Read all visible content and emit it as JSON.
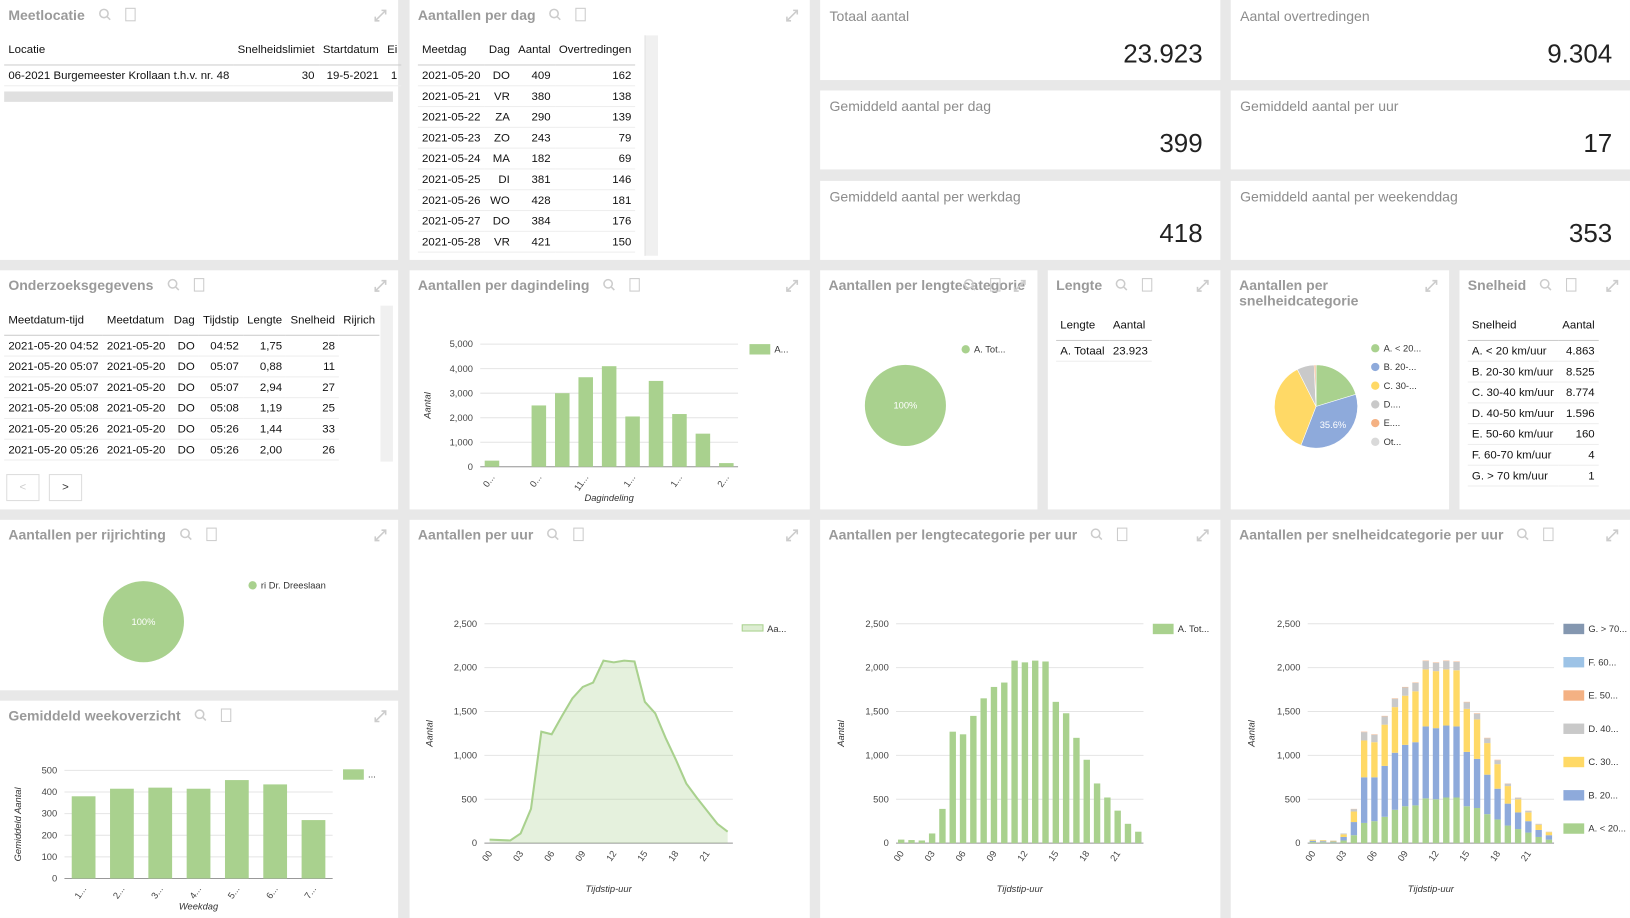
{
  "tables": [
    {
      "title": "Meetlocatie",
      "columns": [
        "Locatie",
        "Snelheidslimiet",
        "Startdatum",
        "Ei"
      ],
      "rows": [
        [
          "06-2021 Burgemeester Krollaan t.h.v. nr. 48",
          30,
          "19-5-2021",
          "1"
        ]
      ]
    },
    {
      "title": "Aantallen per dag",
      "columns": [
        "Meetdag",
        "Dag",
        "Aantal",
        "Overtredingen"
      ],
      "rows": [
        [
          "2021-05-20",
          "DO",
          409,
          162
        ],
        [
          "2021-05-21",
          "VR",
          380,
          138
        ],
        [
          "2021-05-22",
          "ZA",
          290,
          139
        ],
        [
          "2021-05-23",
          "ZO",
          243,
          79
        ],
        [
          "2021-05-24",
          "MA",
          182,
          69
        ],
        [
          "2021-05-25",
          "DI",
          381,
          146
        ],
        [
          "2021-05-26",
          "WO",
          428,
          181
        ],
        [
          "2021-05-27",
          "DO",
          384,
          176
        ],
        [
          "2021-05-28",
          "VR",
          421,
          150
        ]
      ]
    },
    {
      "title": "Onderzoeksgegevens",
      "columns": [
        "Meetdatum-tijd",
        "Meetdatum",
        "Dag",
        "Tijdstip",
        "Lengte",
        "Snelheid",
        "Rijrich"
      ],
      "rows": [
        [
          "2021-05-20 04:52",
          "2021-05-20",
          "DO",
          "04:52",
          "1,75",
          28
        ],
        [
          "2021-05-20 05:07",
          "2021-05-20",
          "DO",
          "05:07",
          "0,88",
          11
        ],
        [
          "2021-05-20 05:07",
          "2021-05-20",
          "DO",
          "05:07",
          "2,94",
          27
        ],
        [
          "2021-05-20 05:08",
          "2021-05-20",
          "DO",
          "05:08",
          "1,19",
          25
        ],
        [
          "2021-05-20 05:26",
          "2021-05-20",
          "DO",
          "05:26",
          "1,44",
          33
        ],
        [
          "2021-05-20 05:26",
          "2021-05-20",
          "DO",
          "05:26",
          "2,00",
          26
        ]
      ]
    },
    {
      "title": "Lengte",
      "columns": [
        "Lengte",
        "Aantal"
      ],
      "rows": [
        [
          "A. Totaal",
          "23.923"
        ]
      ]
    },
    {
      "title": "Snelheid",
      "columns": [
        "Snelheid",
        "Aantal"
      ],
      "rows": [
        [
          "A. < 20 km/uur",
          "4.863"
        ],
        [
          "B. 20-30 km/uur",
          "8.525"
        ],
        [
          "C. 30-40 km/uur",
          "8.774"
        ],
        [
          "D. 40-50 km/uur",
          "1.596"
        ],
        [
          "E. 50-60 km/uur",
          160
        ],
        [
          "F. 60-70 km/uur",
          4
        ],
        [
          "G. > 70 km/uur",
          1
        ]
      ]
    }
  ],
  "kpis": [
    {
      "label": "Totaal aantal",
      "value": "23.923"
    },
    {
      "label": "Aantal overtredingen",
      "value": "9.304"
    },
    {
      "label": "Gemiddeld aantal per dag",
      "value": 399
    },
    {
      "label": "Gemiddeld aantal per uur",
      "value": 17
    },
    {
      "label": "Gemiddeld aantal per werkdag",
      "value": 418
    },
    {
      "label": "Gemiddeld aantal per weekenddag",
      "value": 353
    }
  ],
  "pager": {
    "prev": "<",
    "next": ">"
  },
  "chart_data": [
    {
      "type": "bar",
      "title": "Aantallen per dagindeling",
      "xlabel": "Dagindeling",
      "ylabel": "Aantal",
      "categories": [
        "0...",
        null,
        "0...",
        null,
        "11...",
        null,
        "1...",
        null,
        "1...",
        null,
        "2..."
      ],
      "series": [
        {
          "name": "A...",
          "color": "#a9d18e",
          "values": [
            250,
            0,
            2500,
            3000,
            3650,
            4100,
            2050,
            3500,
            2150,
            1350,
            150
          ]
        }
      ],
      "ylim": [
        0,
        5000
      ],
      "yticks": [
        0,
        {
          "value": 1000,
          "label": "1,000"
        },
        {
          "value": 2000,
          "label": "2,000"
        },
        {
          "value": 3000,
          "label": "3,000"
        },
        {
          "value": 4000,
          "label": "4,000"
        },
        {
          "value": 5000,
          "label": "5,000"
        }
      ],
      "grid": true
    },
    {
      "type": "pie",
      "title": "Aantallen per lengtecategorie",
      "categories": [
        "A. Tot..."
      ],
      "values": [
        100
      ],
      "value_labels": [
        "100%"
      ],
      "colors": [
        "#a9d18e"
      ]
    },
    {
      "type": "pie",
      "title": "Aantallen per snelheidcategorie",
      "categories": [
        "A. < 20...",
        "B. 20-...",
        "C. 30-...",
        "D....",
        "E....",
        "Ot..."
      ],
      "values": [
        20.3,
        35.6,
        36.7,
        6.7,
        0.7,
        0.02
      ],
      "value_labels": [
        null,
        "35.6%",
        null,
        null,
        null,
        null
      ],
      "colors": [
        "#a9d18e",
        "#8eaadb",
        "#ffd966",
        "#c9c9c9",
        "#f4b183",
        "#d9d9d9"
      ]
    },
    {
      "type": "pie",
      "title": "Aantallen per rijrichting",
      "categories": [
        "ri Dr. Dreeslaan"
      ],
      "values": [
        100
      ],
      "value_labels": [
        "100%"
      ],
      "colors": [
        "#a9d18e"
      ]
    },
    {
      "type": "bar",
      "title": "Gemiddeld weekoverzicht",
      "xlabel": "Weekdag",
      "ylabel": "Gemiddeld Aantal",
      "categories": [
        "1...",
        "2...",
        "3...",
        "4...",
        "5...",
        "6...",
        "7..."
      ],
      "series": [
        {
          "name": "...",
          "color": "#a9d18e",
          "values": [
            380,
            415,
            420,
            415,
            455,
            435,
            270
          ]
        }
      ],
      "ylim": [
        0,
        500
      ],
      "yticks": [
        0,
        100,
        200,
        300,
        400,
        500
      ],
      "grid": true
    },
    {
      "type": "area",
      "title": "Aantallen per uur",
      "xlabel": "Tijdstip-uur",
      "ylabel": "Aantal",
      "categories": [
        "00",
        null,
        null,
        "03",
        null,
        null,
        "06",
        null,
        null,
        "09",
        null,
        null,
        "12",
        null,
        null,
        "15",
        null,
        null,
        "18",
        null,
        null,
        "21",
        null,
        null
      ],
      "series": [
        {
          "name": "Aa...",
          "color": "#a9d18e",
          "values": [
            40,
            35,
            30,
            110,
            390,
            1270,
            1240,
            1450,
            1650,
            1780,
            1830,
            2080,
            2060,
            2080,
            2070,
            1610,
            1480,
            1200,
            950,
            680,
            520,
            370,
            220,
            130
          ]
        }
      ],
      "ylim": [
        0,
        2500
      ],
      "yticks": [
        0,
        500,
        {
          "value": 1000,
          "label": "1,000"
        },
        {
          "value": 1500,
          "label": "1,500"
        },
        {
          "value": 2000,
          "label": "2,000"
        },
        {
          "value": 2500,
          "label": "2,500"
        }
      ],
      "grid": true
    },
    {
      "type": "bar",
      "title": "Aantallen per lengtecategorie per uur",
      "xlabel": "Tijdstip-uur",
      "ylabel": "Aantal",
      "categories": [
        "00",
        null,
        null,
        "03",
        null,
        null,
        "06",
        null,
        null,
        "09",
        null,
        null,
        "12",
        null,
        null,
        "15",
        null,
        null,
        "18",
        null,
        null,
        "21",
        null,
        null
      ],
      "series": [
        {
          "name": "A. Tot...",
          "color": "#a9d18e",
          "values": [
            40,
            35,
            30,
            110,
            390,
            1270,
            1240,
            1450,
            1650,
            1780,
            1830,
            2080,
            2060,
            2080,
            2070,
            1610,
            1480,
            1200,
            950,
            680,
            520,
            370,
            220,
            130
          ]
        }
      ],
      "ylim": [
        0,
        2500
      ],
      "yticks": [
        0,
        500,
        {
          "value": 1000,
          "label": "1,000"
        },
        {
          "value": 1500,
          "label": "1,500"
        },
        {
          "value": 2000,
          "label": "2,000"
        },
        {
          "value": 2500,
          "label": "2,500"
        }
      ],
      "grid": true
    },
    {
      "type": "stacked_bar",
      "title": "Aantallen per snelheidcategorie per uur",
      "xlabel": "Tijdstip-uur",
      "ylabel": "Aantal",
      "categories": [
        "00",
        null,
        null,
        "03",
        null,
        null,
        "06",
        null,
        null,
        "09",
        null,
        null,
        "12",
        null,
        null,
        "15",
        null,
        null,
        "18",
        null,
        null,
        "21",
        null,
        null
      ],
      "series": [
        {
          "name": "A. < 20...",
          "color": "#a9d18e",
          "values": [
            12,
            10,
            8,
            30,
            90,
            230,
            250,
            300,
            380,
            420,
            430,
            510,
            500,
            520,
            520,
            420,
            400,
            330,
            270,
            200,
            160,
            120,
            70,
            40
          ]
        },
        {
          "name": "B. 20...",
          "color": "#8eaadb",
          "values": [
            15,
            12,
            10,
            40,
            150,
            520,
            500,
            580,
            650,
            700,
            720,
            820,
            810,
            820,
            810,
            620,
            560,
            450,
            350,
            250,
            190,
            130,
            80,
            50
          ]
        },
        {
          "name": "C. 30...",
          "color": "#ffd966",
          "values": [
            10,
            10,
            9,
            30,
            120,
            420,
            400,
            470,
            520,
            560,
            580,
            650,
            650,
            640,
            640,
            490,
            450,
            360,
            280,
            200,
            150,
            100,
            60,
            35
          ]
        },
        {
          "name": "D. 40...",
          "color": "#c9c9c9",
          "values": [
            3,
            3,
            3,
            10,
            28,
            95,
            85,
            95,
            95,
            95,
            95,
            95,
            95,
            95,
            95,
            75,
            65,
            55,
            45,
            28,
            18,
            18,
            9,
            4
          ]
        },
        {
          "name": "E. 50...",
          "color": "#f4b183",
          "values": [
            0,
            0,
            0,
            0,
            2,
            5,
            5,
            5,
            5,
            5,
            5,
            5,
            5,
            5,
            5,
            5,
            5,
            5,
            5,
            2,
            2,
            2,
            1,
            1
          ]
        },
        {
          "name": "F. 60...",
          "color": "#9dc3e6",
          "values": [
            0,
            0,
            0,
            0,
            0,
            0,
            0,
            0,
            0,
            0,
            0,
            0,
            0,
            0,
            0,
            0,
            0,
            0,
            0,
            0,
            0,
            0,
            0,
            0
          ]
        },
        {
          "name": "G. > 70...",
          "color": "#8497b0",
          "values": [
            0,
            0,
            0,
            0,
            0,
            0,
            0,
            0,
            0,
            0,
            0,
            0,
            0,
            0,
            0,
            0,
            0,
            0,
            0,
            0,
            0,
            0,
            0,
            0
          ]
        }
      ],
      "ylim": [
        0,
        2500
      ],
      "yticks": [
        0,
        500,
        {
          "value": 1000,
          "label": "1,000"
        },
        {
          "value": 1500,
          "label": "1,500"
        },
        {
          "value": 2000,
          "label": "2,000"
        },
        {
          "value": 2500,
          "label": "2,500"
        }
      ],
      "grid": true
    }
  ]
}
